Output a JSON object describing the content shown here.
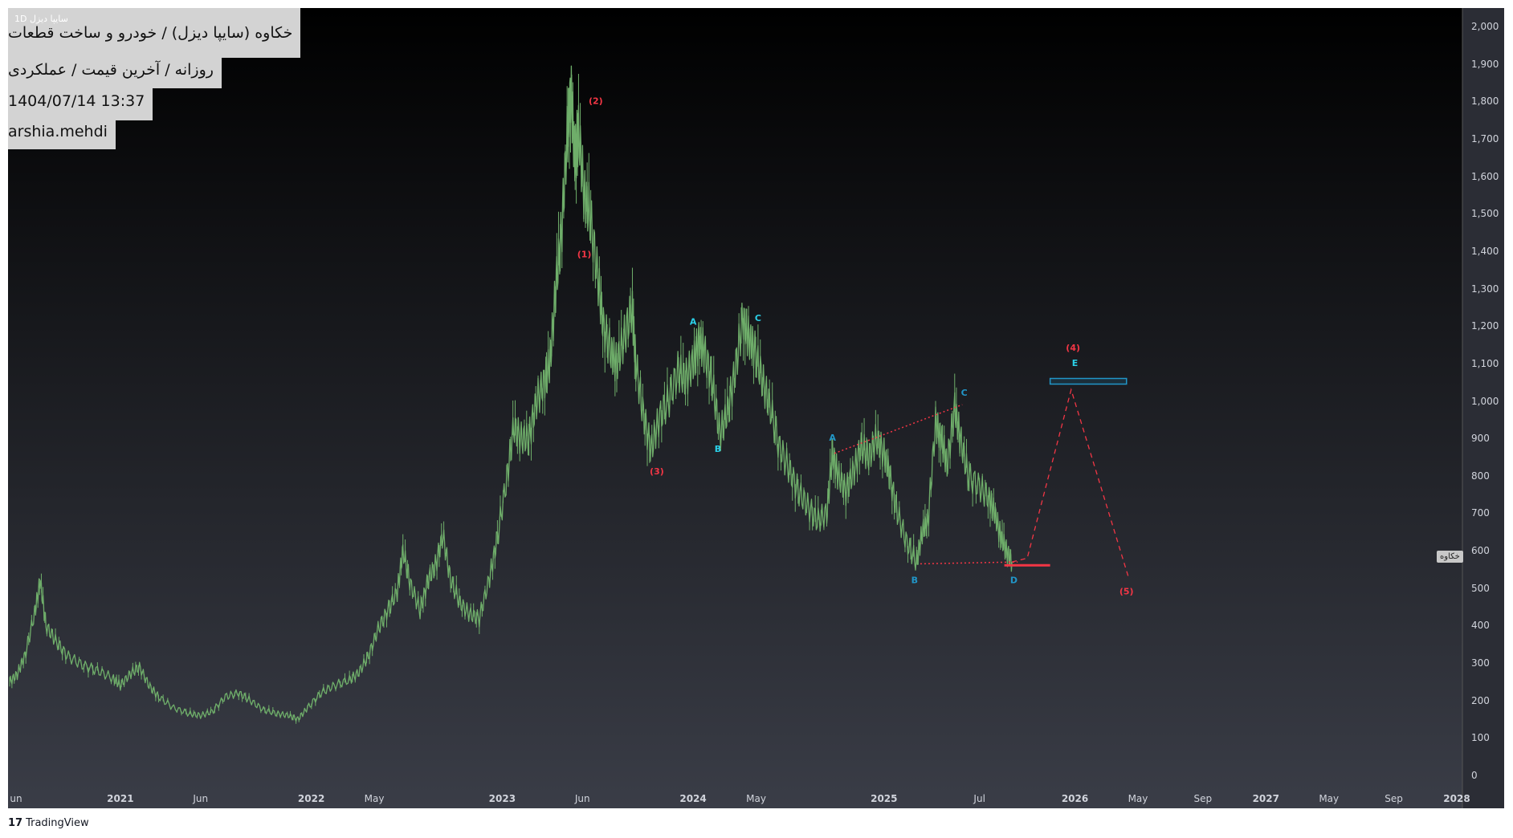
{
  "header": {
    "symbol_small": "سایپا دیزل 1D",
    "title": "خکاوه (سایپا دیزل) / خودرو و ساخت قطعات",
    "subtitle": "روزانه / آخرین قیمت / عملکردی",
    "datetime": "1404/07/14 13:37",
    "user": "arshia.mehdi"
  },
  "price_label": "خکاوه",
  "footer": {
    "brand": "TradingView"
  },
  "colors": {
    "background_top": "#000000",
    "background_bottom": "#3a3d47",
    "candle": "#6fae6a",
    "wave_red": "#f23645",
    "wave_cyan": "#2bd0e8",
    "wave_blue": "#2196c8"
  },
  "chart_data": {
    "type": "line",
    "title": "خکاوه (سایپا دیزل) / خودرو و ساخت قطعات",
    "xlabel": "",
    "ylabel": "",
    "ylim": [
      0,
      2000
    ],
    "y_ticks": [
      "0",
      "100",
      "200",
      "300",
      "400",
      "500",
      "600",
      "700",
      "800",
      "900",
      "1,000",
      "1,100",
      "1,200",
      "1,300",
      "1,400",
      "1,500",
      "1,600",
      "1,700",
      "1,800",
      "1,900",
      "2,000"
    ],
    "x_ticks": [
      {
        "label": "un",
        "t": 2020.42,
        "major": false
      },
      {
        "label": "2021",
        "t": 2021.0,
        "major": true
      },
      {
        "label": "Jun",
        "t": 2021.42,
        "major": false
      },
      {
        "label": "2022",
        "t": 2022.0,
        "major": true
      },
      {
        "label": "May",
        "t": 2022.33,
        "major": false
      },
      {
        "label": "2023",
        "t": 2023.0,
        "major": true
      },
      {
        "label": "Jun",
        "t": 2023.42,
        "major": false
      },
      {
        "label": "2024",
        "t": 2024.0,
        "major": true
      },
      {
        "label": "May",
        "t": 2024.33,
        "major": false
      },
      {
        "label": "2025",
        "t": 2025.0,
        "major": true
      },
      {
        "label": "Jul",
        "t": 2025.5,
        "major": false
      },
      {
        "label": "2026",
        "t": 2026.0,
        "major": true
      },
      {
        "label": "May",
        "t": 2026.33,
        "major": false
      },
      {
        "label": "Sep",
        "t": 2026.67,
        "major": false
      },
      {
        "label": "2027",
        "t": 2027.0,
        "major": true
      },
      {
        "label": "May",
        "t": 2027.33,
        "major": false
      },
      {
        "label": "Sep",
        "t": 2027.67,
        "major": false
      },
      {
        "label": "2028",
        "t": 2028.0,
        "major": true
      }
    ],
    "grid": false,
    "series": [
      {
        "values": [
          [
            2020.42,
            250
          ],
          [
            2020.46,
            270
          ],
          [
            2020.5,
            320
          ],
          [
            2020.55,
            430
          ],
          [
            2020.58,
            520
          ],
          [
            2020.61,
            400
          ],
          [
            2020.66,
            360
          ],
          [
            2020.72,
            320
          ],
          [
            2020.8,
            295
          ],
          [
            2020.88,
            280
          ],
          [
            2020.96,
            260
          ],
          [
            2021.0,
            240
          ],
          [
            2021.05,
            270
          ],
          [
            2021.1,
            290
          ],
          [
            2021.15,
            240
          ],
          [
            2021.2,
            210
          ],
          [
            2021.28,
            180
          ],
          [
            2021.36,
            165
          ],
          [
            2021.42,
            160
          ],
          [
            2021.48,
            170
          ],
          [
            2021.55,
            210
          ],
          [
            2021.62,
            220
          ],
          [
            2021.68,
            200
          ],
          [
            2021.75,
            175
          ],
          [
            2021.82,
            165
          ],
          [
            2021.88,
            160
          ],
          [
            2021.93,
            150
          ],
          [
            2021.98,
            180
          ],
          [
            2022.05,
            220
          ],
          [
            2022.12,
            240
          ],
          [
            2022.2,
            255
          ],
          [
            2022.25,
            275
          ],
          [
            2022.3,
            320
          ],
          [
            2022.35,
            390
          ],
          [
            2022.4,
            440
          ],
          [
            2022.45,
            490
          ],
          [
            2022.48,
            600
          ],
          [
            2022.52,
            510
          ],
          [
            2022.57,
            440
          ],
          [
            2022.61,
            520
          ],
          [
            2022.65,
            560
          ],
          [
            2022.69,
            640
          ],
          [
            2022.73,
            520
          ],
          [
            2022.78,
            460
          ],
          [
            2022.83,
            430
          ],
          [
            2022.88,
            420
          ],
          [
            2022.93,
            520
          ],
          [
            2022.97,
            620
          ],
          [
            2023.02,
            780
          ],
          [
            2023.06,
            930
          ],
          [
            2023.1,
            900
          ],
          [
            2023.14,
            900
          ],
          [
            2023.18,
            1000
          ],
          [
            2023.22,
            1050
          ],
          [
            2023.25,
            1100
          ],
          [
            2023.28,
            1300
          ],
          [
            2023.31,
            1450
          ],
          [
            2023.34,
            1700
          ],
          [
            2023.36,
            1830
          ],
          [
            2023.38,
            1650
          ],
          [
            2023.4,
            1720
          ],
          [
            2023.43,
            1550
          ],
          [
            2023.46,
            1500
          ],
          [
            2023.5,
            1330
          ],
          [
            2023.53,
            1200
          ],
          [
            2023.57,
            1130
          ],
          [
            2023.6,
            1100
          ],
          [
            2023.64,
            1170
          ],
          [
            2023.68,
            1250
          ],
          [
            2023.7,
            1100
          ],
          [
            2023.74,
            960
          ],
          [
            2023.78,
            870
          ],
          [
            2023.82,
            950
          ],
          [
            2023.87,
            1000
          ],
          [
            2023.92,
            1080
          ],
          [
            2023.96,
            1060
          ],
          [
            2024.0,
            1100
          ],
          [
            2024.03,
            1160
          ],
          [
            2024.06,
            1130
          ],
          [
            2024.1,
            1050
          ],
          [
            2024.14,
            910
          ],
          [
            2024.18,
            970
          ],
          [
            2024.22,
            1080
          ],
          [
            2024.26,
            1220
          ],
          [
            2024.29,
            1170
          ],
          [
            2024.32,
            1140
          ],
          [
            2024.36,
            1060
          ],
          [
            2024.4,
            990
          ],
          [
            2024.45,
            880
          ],
          [
            2024.5,
            820
          ],
          [
            2024.55,
            760
          ],
          [
            2024.6,
            720
          ],
          [
            2024.65,
            680
          ],
          [
            2024.7,
            700
          ],
          [
            2024.73,
            860
          ],
          [
            2024.76,
            800
          ],
          [
            2024.8,
            760
          ],
          [
            2024.84,
            810
          ],
          [
            2024.88,
            880
          ],
          [
            2024.92,
            850
          ],
          [
            2024.96,
            900
          ],
          [
            2025.0,
            860
          ],
          [
            2025.03,
            800
          ],
          [
            2025.07,
            700
          ],
          [
            2025.12,
            620
          ],
          [
            2025.17,
            570
          ],
          [
            2025.2,
            650
          ],
          [
            2025.23,
            680
          ],
          [
            2025.27,
            940
          ],
          [
            2025.3,
            900
          ],
          [
            2025.33,
            830
          ],
          [
            2025.37,
            980
          ],
          [
            2025.4,
            900
          ],
          [
            2025.44,
            800
          ],
          [
            2025.5,
            770
          ],
          [
            2025.55,
            740
          ],
          [
            2025.58,
            700
          ],
          [
            2025.61,
            640
          ],
          [
            2025.64,
            600
          ],
          [
            2025.67,
            570
          ]
        ]
      }
    ],
    "projection": [
      [
        2025.67,
        570
      ],
      [
        2025.75,
        580
      ],
      [
        2025.98,
        1030
      ],
      [
        2026.28,
        530
      ]
    ],
    "wave_labels": [
      {
        "text": "(1)",
        "t": 2023.43,
        "v": 1390,
        "color": "red"
      },
      {
        "text": "(2)",
        "t": 2023.49,
        "v": 1800,
        "color": "red"
      },
      {
        "text": "(3)",
        "t": 2023.81,
        "v": 810,
        "color": "red"
      },
      {
        "text": "(4)",
        "t": 2025.99,
        "v": 1140,
        "color": "red"
      },
      {
        "text": "(5)",
        "t": 2026.27,
        "v": 490,
        "color": "red"
      },
      {
        "text": "A",
        "t": 2024.0,
        "v": 1210,
        "color": "cyan"
      },
      {
        "text": "B",
        "t": 2024.13,
        "v": 870,
        "color": "cyan"
      },
      {
        "text": "C",
        "t": 2024.34,
        "v": 1220,
        "color": "cyan"
      },
      {
        "text": "A",
        "t": 2024.73,
        "v": 900,
        "color": "blue"
      },
      {
        "text": "B",
        "t": 2025.16,
        "v": 520,
        "color": "blue"
      },
      {
        "text": "C",
        "t": 2025.42,
        "v": 1020,
        "color": "blue"
      },
      {
        "text": "D",
        "t": 2025.68,
        "v": 520,
        "color": "blue"
      },
      {
        "text": "E",
        "t": 2026.0,
        "v": 1100,
        "color": "cyan"
      }
    ],
    "triangle_upper": [
      [
        2024.74,
        860
      ],
      [
        2025.41,
        990
      ]
    ],
    "triangle_lower": [
      [
        2025.19,
        565
      ],
      [
        2025.7,
        570
      ]
    ],
    "target_box": {
      "t0": 2025.87,
      "t1": 2026.27,
      "v0": 1045,
      "v1": 1060
    },
    "support_line": {
      "t0": 2025.63,
      "t1": 2025.87,
      "v": 560
    }
  }
}
